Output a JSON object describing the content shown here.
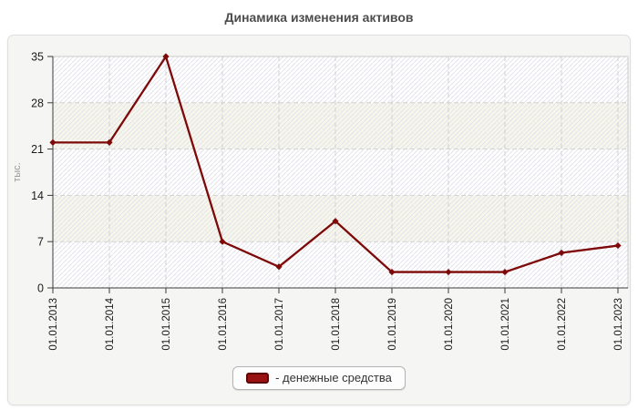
{
  "title": "Динамика изменения активов",
  "chart_data": {
    "type": "line",
    "title": "Динамика изменения активов",
    "xlabel": "",
    "ylabel": "тыс.",
    "categories": [
      "01.01.2013",
      "01.01.2014",
      "01.01.2015",
      "01.01.2016",
      "01.01.2017",
      "01.01.2018",
      "01.01.2019",
      "01.01.2020",
      "01.01.2021",
      "01.01.2022",
      "01.01.2023"
    ],
    "series": [
      {
        "name": "денежные средства",
        "color": "#7d0909",
        "values": [
          22,
          22,
          35,
          7,
          3.2,
          10.1,
          2.4,
          2.4,
          2.4,
          5.3,
          6.4
        ]
      }
    ],
    "ylim": [
      0,
      35
    ],
    "yticks": [
      0,
      7,
      14,
      21,
      28,
      35
    ],
    "grid": true,
    "gridline_style": "dashed",
    "legend_position": "bottom",
    "colors": {
      "grid": "#d2d2d2",
      "axis": "#3c3c3c",
      "tick_text": "#1c1c1c",
      "ylabel_text": "#9a9a9a",
      "band_cream": "#f7f6ea",
      "band_white": "#ffffff",
      "hatch": "#e3e3ec",
      "plot_border": "#cbcbcb"
    }
  },
  "legend": {
    "label": "- денежные средства",
    "swatch_fill": "#9a1111",
    "swatch_border": "#5c0707"
  }
}
